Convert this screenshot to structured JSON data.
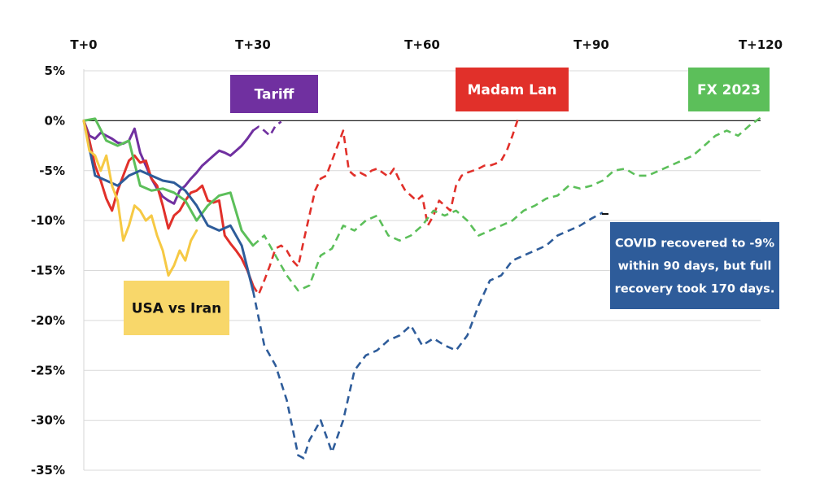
{
  "chart_data": {
    "type": "line",
    "x_ticks": [
      "T+0",
      "T+30",
      "T+60",
      "T+90",
      "T+120"
    ],
    "x_tick_values": [
      0,
      30,
      60,
      90,
      120
    ],
    "xlim": [
      0,
      120
    ],
    "y_ticks": [
      "5%",
      "0%",
      "-5%",
      "-10%",
      "-15%",
      "-20%",
      "-25%",
      "-30%",
      "-35%"
    ],
    "y_tick_values": [
      5,
      0,
      -5,
      -10,
      -15,
      -20,
      -25,
      -30,
      -35
    ],
    "ylim": [
      -35,
      5
    ],
    "grid": "horizontal",
    "solid_until_day": 30,
    "after_day_30": "dashed",
    "series": [
      {
        "name": "Tariff",
        "color": "#7030a0",
        "x": [
          0,
          1,
          2,
          3,
          4,
          5,
          6,
          7,
          8,
          9,
          10,
          11,
          12,
          13,
          14,
          15,
          16,
          17,
          18,
          19,
          20,
          21,
          22,
          23,
          24,
          25,
          26,
          27,
          28,
          29,
          30,
          31,
          32,
          33,
          34,
          35
        ],
        "y": [
          0,
          -1.5,
          -1.8,
          -1.2,
          -1.5,
          -1.8,
          -2.2,
          -2.3,
          -2.0,
          -0.8,
          -3.2,
          -4.5,
          -5.8,
          -6.8,
          -7.6,
          -8.0,
          -8.3,
          -7.0,
          -6.5,
          -5.8,
          -5.2,
          -4.5,
          -4.0,
          -3.5,
          -3.0,
          -3.2,
          -3.5,
          -3.0,
          -2.5,
          -1.8,
          -1.0,
          -0.6,
          -1.0,
          -1.5,
          -0.5,
          -0.1
        ]
      },
      {
        "name": "Madam Lan",
        "color": "#e1302a",
        "x": [
          0,
          1,
          2,
          3,
          4,
          5,
          6,
          7,
          8,
          9,
          10,
          11,
          12,
          13,
          14,
          15,
          16,
          17,
          18,
          19,
          20,
          21,
          22,
          23,
          24,
          25,
          26,
          27,
          28,
          29,
          30,
          31,
          32,
          33,
          34,
          35,
          36,
          37,
          38,
          39,
          40,
          41,
          42,
          43,
          44,
          45,
          46,
          47,
          48,
          49,
          50,
          51,
          52,
          53,
          54,
          55,
          56,
          57,
          58,
          59,
          60,
          61,
          62,
          63,
          64,
          65,
          66,
          67,
          68,
          69,
          70,
          71,
          72,
          73,
          74,
          75,
          76,
          77
        ],
        "y": [
          0,
          -2.0,
          -4.5,
          -6.0,
          -7.8,
          -9.0,
          -7.0,
          -5.5,
          -4.0,
          -3.5,
          -4.2,
          -4.0,
          -5.8,
          -6.5,
          -8.5,
          -10.8,
          -9.5,
          -9.0,
          -8.0,
          -7.2,
          -7.0,
          -6.5,
          -8.0,
          -8.2,
          -8.0,
          -11.5,
          -12.3,
          -13.0,
          -13.8,
          -15.0,
          -16.5,
          -17.4,
          -16.0,
          -14.5,
          -12.8,
          -12.5,
          -13.0,
          -14.0,
          -14.6,
          -12.0,
          -9.5,
          -7.0,
          -5.8,
          -5.5,
          -4.0,
          -2.5,
          -1.0,
          -5.0,
          -5.5,
          -5.2,
          -5.5,
          -5.0,
          -4.8,
          -5.2,
          -5.6,
          -4.8,
          -6.0,
          -7.0,
          -7.5,
          -8.0,
          -7.5,
          -10.5,
          -9.5,
          -8.0,
          -8.5,
          -9.0,
          -6.5,
          -5.5,
          -5.2,
          -5.0,
          -4.8,
          -4.5,
          -4.5,
          -4.3,
          -4.0,
          -3.0,
          -1.5,
          0.2
        ]
      },
      {
        "name": "FX 2023",
        "color": "#5cbf5a",
        "x": [
          0,
          2,
          4,
          6,
          8,
          10,
          12,
          14,
          16,
          18,
          20,
          22,
          24,
          26,
          28,
          30,
          32,
          34,
          36,
          38,
          40,
          42,
          44,
          46,
          48,
          50,
          52,
          54,
          56,
          58,
          60,
          62,
          64,
          66,
          68,
          70,
          72,
          74,
          76,
          78,
          80,
          82,
          84,
          86,
          88,
          90,
          92,
          94,
          96,
          98,
          100,
          102,
          104,
          106,
          108,
          110,
          112,
          114,
          116,
          118,
          120
        ],
        "y": [
          0,
          0.2,
          -2.0,
          -2.5,
          -2.0,
          -6.5,
          -7.0,
          -6.8,
          -7.2,
          -8.0,
          -10.0,
          -8.5,
          -7.5,
          -7.2,
          -11.0,
          -12.5,
          -11.5,
          -13.5,
          -15.5,
          -17.0,
          -16.5,
          -13.5,
          -12.8,
          -10.5,
          -11.0,
          -10.0,
          -9.5,
          -11.5,
          -12.0,
          -11.5,
          -10.5,
          -9.0,
          -9.5,
          -9.0,
          -10.0,
          -11.5,
          -11.0,
          -10.5,
          -10.0,
          -9.0,
          -8.5,
          -7.8,
          -7.5,
          -6.5,
          -6.8,
          -6.5,
          -6.0,
          -5.0,
          -4.8,
          -5.5,
          -5.5,
          -5.0,
          -4.5,
          -4.0,
          -3.5,
          -2.5,
          -1.5,
          -1.0,
          -1.5,
          -0.5,
          0.3
        ]
      },
      {
        "name": "COVID",
        "color": "#2e5c9a",
        "x": [
          0,
          2,
          4,
          6,
          8,
          10,
          12,
          14,
          16,
          18,
          20,
          22,
          24,
          26,
          28,
          30,
          32,
          34,
          36,
          38,
          39,
          40,
          42,
          44,
          46,
          48,
          50,
          52,
          54,
          56,
          58,
          60,
          62,
          64,
          66,
          68,
          70,
          72,
          74,
          76,
          78,
          80,
          82,
          84,
          86,
          88,
          90,
          92
        ],
        "y": [
          0,
          -5.5,
          -6.0,
          -6.5,
          -5.5,
          -5.0,
          -5.5,
          -6.0,
          -6.2,
          -7.0,
          -8.5,
          -10.5,
          -11.0,
          -10.5,
          -12.5,
          -17.0,
          -22.5,
          -24.5,
          -28.0,
          -33.5,
          -33.8,
          -32.0,
          -30.0,
          -33.2,
          -30.0,
          -25.0,
          -23.5,
          -23.0,
          -22.0,
          -21.5,
          -20.5,
          -22.5,
          -21.8,
          -22.5,
          -23.0,
          -21.5,
          -18.5,
          -16.0,
          -15.5,
          -14.0,
          -13.5,
          -13.0,
          -12.5,
          -11.5,
          -11.0,
          -10.5,
          -9.8,
          -9.2
        ]
      },
      {
        "name": "USA vs Iran",
        "color": "#f6c944",
        "x": [
          0,
          1,
          2,
          3,
          4,
          5,
          6,
          7,
          8,
          9,
          10,
          11,
          12,
          13,
          14,
          15,
          16,
          17,
          18,
          19,
          20
        ],
        "y": [
          0,
          -3.0,
          -3.5,
          -5.0,
          -3.5,
          -6.5,
          -8.0,
          -12.0,
          -10.5,
          -8.5,
          -9.0,
          -10.0,
          -9.5,
          -11.5,
          -13.0,
          -15.5,
          -14.5,
          -13.0,
          -14.0,
          -12.0,
          -11.0
        ]
      }
    ],
    "annotations": [
      {
        "text": "Tariff",
        "color": "#7030a0",
        "text_color": "#ffffff"
      },
      {
        "text": "Madam Lan",
        "color": "#e1302a",
        "text_color": "#ffffff"
      },
      {
        "text": "FX 2023",
        "color": "#5cbf5a",
        "text_color": "#ffffff"
      },
      {
        "text": "USA vs Iran",
        "color": "#f8d76a",
        "text_color": "#111111"
      },
      {
        "lines": [
          "COVID recovered to -9%",
          "within 90 days, but full",
          "recovery took 170 days."
        ],
        "color": "#2e5c9a",
        "text_color": "#ffffff"
      }
    ]
  }
}
